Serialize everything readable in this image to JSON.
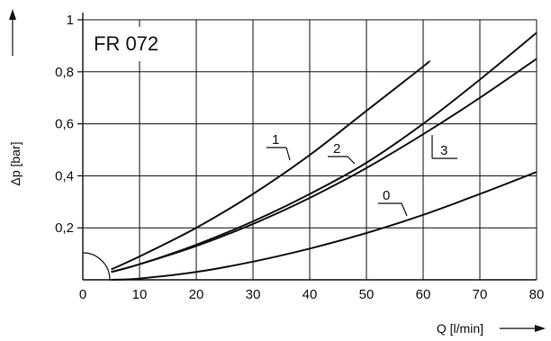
{
  "chart_data": {
    "type": "line",
    "title": "FR 072",
    "xlabel": "Q [l/min]",
    "ylabel": "Δp [bar]",
    "xlim": [
      0,
      80
    ],
    "ylim": [
      0,
      1
    ],
    "x_ticks": [
      "0",
      "10",
      "20",
      "30",
      "40",
      "50",
      "60",
      "70",
      "80"
    ],
    "y_ticks": [
      "0,2",
      "0,4",
      "0,6",
      "0,8",
      "1"
    ],
    "grid": true,
    "series": [
      {
        "name": "1",
        "x": [
          5,
          10,
          20,
          30,
          40,
          50,
          60,
          61
        ],
        "y": [
          0.04,
          0.09,
          0.2,
          0.33,
          0.48,
          0.65,
          0.82,
          0.84
        ]
      },
      {
        "name": "2",
        "x": [
          5,
          10,
          20,
          30,
          40,
          50,
          60,
          70,
          80
        ],
        "y": [
          0.03,
          0.06,
          0.135,
          0.225,
          0.33,
          0.45,
          0.6,
          0.77,
          0.95
        ]
      },
      {
        "name": "3",
        "x": [
          5,
          10,
          20,
          30,
          40,
          50,
          60,
          70,
          80
        ],
        "y": [
          0.03,
          0.06,
          0.13,
          0.215,
          0.315,
          0.43,
          0.56,
          0.7,
          0.85
        ]
      },
      {
        "name": "0",
        "x": [
          5,
          10,
          20,
          30,
          40,
          50,
          60,
          70,
          80
        ],
        "y": [
          0.0,
          0.005,
          0.03,
          0.07,
          0.12,
          0.18,
          0.25,
          0.33,
          0.415
        ]
      }
    ]
  }
}
